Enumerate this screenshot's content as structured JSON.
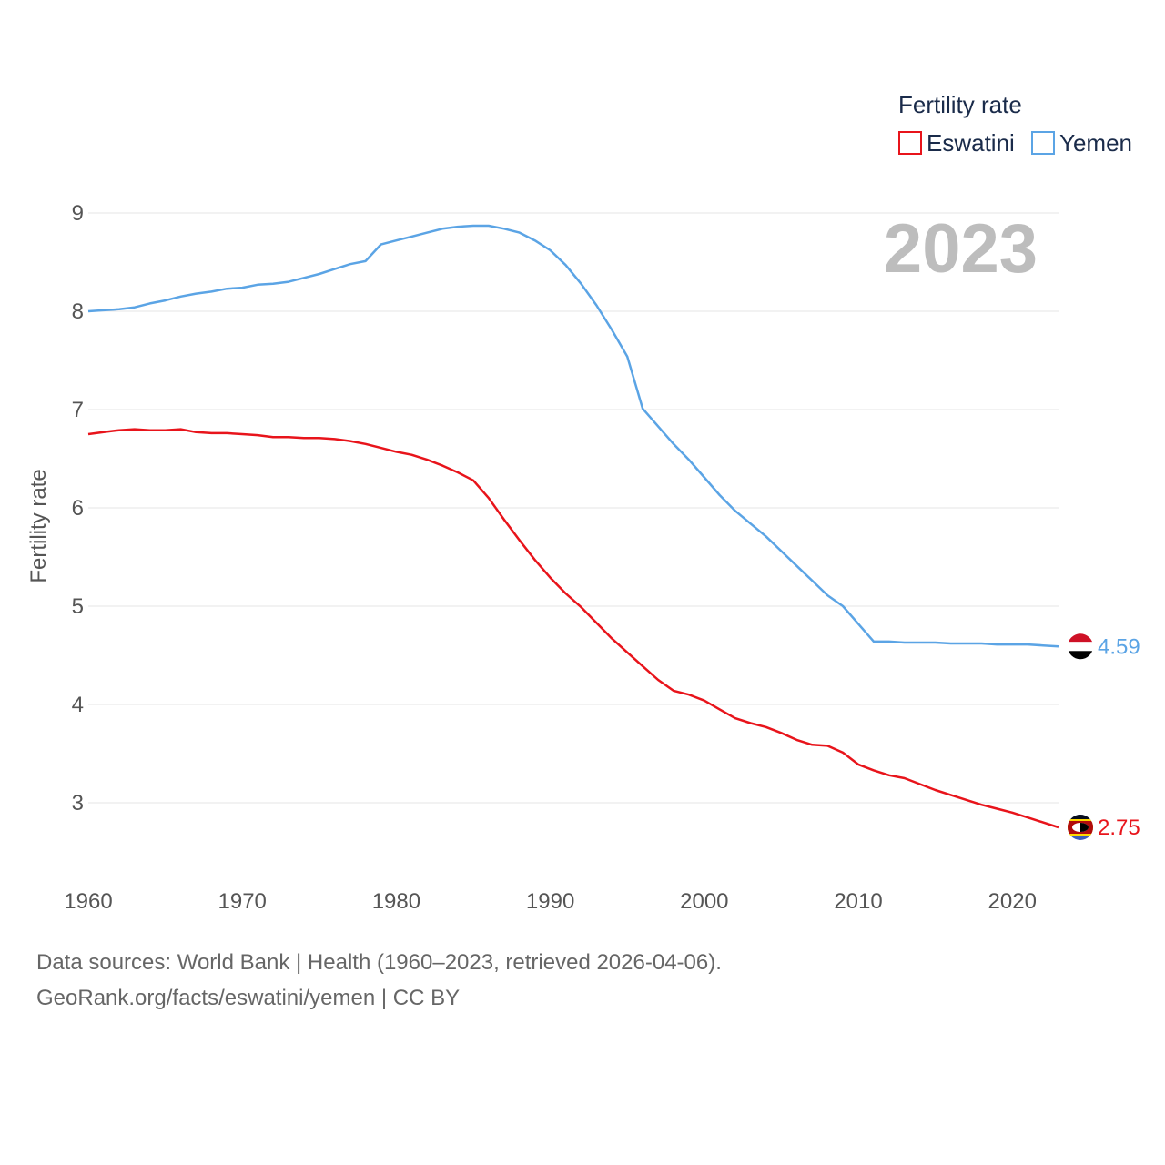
{
  "chart_data": {
    "type": "line",
    "title": "",
    "xlabel": "",
    "ylabel": "Fertility rate",
    "legend_title": "Fertility rate",
    "year_label": "2023",
    "xlim": [
      1960,
      2023
    ],
    "ylim": [
      2.5,
      9.1
    ],
    "x_ticks": [
      1960,
      1970,
      1980,
      1990,
      2000,
      2010,
      2020
    ],
    "y_ticks": [
      3,
      4,
      5,
      6,
      7,
      8,
      9
    ],
    "x": [
      1960,
      1961,
      1962,
      1963,
      1964,
      1965,
      1966,
      1967,
      1968,
      1969,
      1970,
      1971,
      1972,
      1973,
      1974,
      1975,
      1976,
      1977,
      1978,
      1979,
      1980,
      1981,
      1982,
      1983,
      1984,
      1985,
      1986,
      1987,
      1988,
      1989,
      1990,
      1991,
      1992,
      1993,
      1994,
      1995,
      1996,
      1997,
      1998,
      1999,
      2000,
      2001,
      2002,
      2003,
      2004,
      2005,
      2006,
      2007,
      2008,
      2009,
      2010,
      2011,
      2012,
      2013,
      2014,
      2015,
      2016,
      2017,
      2018,
      2019,
      2020,
      2021,
      2022,
      2023
    ],
    "series": [
      {
        "name": "Eswatini",
        "color": "#e8141b",
        "end_label": "2.75",
        "values": [
          6.75,
          6.77,
          6.79,
          6.8,
          6.79,
          6.79,
          6.8,
          6.77,
          6.76,
          6.76,
          6.75,
          6.74,
          6.72,
          6.72,
          6.71,
          6.71,
          6.7,
          6.68,
          6.65,
          6.61,
          6.57,
          6.54,
          6.49,
          6.43,
          6.36,
          6.28,
          6.1,
          5.88,
          5.67,
          5.47,
          5.29,
          5.13,
          4.99,
          4.83,
          4.67,
          4.53,
          4.39,
          4.25,
          4.14,
          4.1,
          4.04,
          3.95,
          3.86,
          3.81,
          3.77,
          3.71,
          3.64,
          3.59,
          3.58,
          3.51,
          3.39,
          3.33,
          3.28,
          3.25,
          3.19,
          3.13,
          3.08,
          3.03,
          2.98,
          2.94,
          2.9,
          2.85,
          2.8,
          2.75
        ]
      },
      {
        "name": "Yemen",
        "color": "#5ba4e5",
        "end_label": "4.59",
        "values": [
          8.0,
          8.01,
          8.02,
          8.04,
          8.08,
          8.11,
          8.15,
          8.18,
          8.2,
          8.23,
          8.24,
          8.27,
          8.28,
          8.3,
          8.34,
          8.38,
          8.43,
          8.48,
          8.51,
          8.68,
          8.72,
          8.76,
          8.8,
          8.84,
          8.86,
          8.87,
          8.87,
          8.84,
          8.8,
          8.72,
          8.62,
          8.47,
          8.28,
          8.06,
          7.81,
          7.54,
          7.01,
          6.83,
          6.65,
          6.49,
          6.31,
          6.13,
          5.97,
          5.84,
          5.71,
          5.56,
          5.41,
          5.26,
          5.11,
          5.0,
          4.82,
          4.64,
          4.64,
          4.63,
          4.63,
          4.63,
          4.62,
          4.62,
          4.62,
          4.61,
          4.61,
          4.61,
          4.6,
          4.59
        ]
      }
    ]
  },
  "source": {
    "line1": "Data sources: World Bank | Health (1960–2023, retrieved 2026-04-06).",
    "line2": "GeoRank.org/facts/eswatini/yemen | CC BY"
  }
}
